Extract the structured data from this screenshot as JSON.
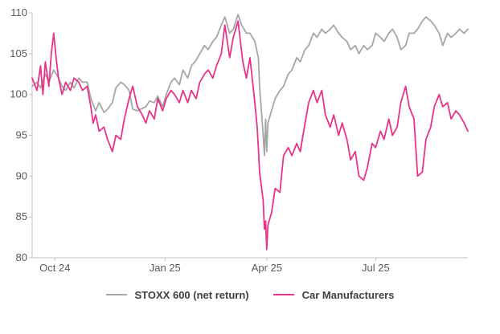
{
  "chart_data": {
    "type": "line",
    "title": "",
    "xlabel": "",
    "ylabel": "",
    "ylim": [
      80,
      110
    ],
    "yticks": [
      80,
      85,
      90,
      95,
      100,
      105,
      110
    ],
    "xlim": [
      "2024-09-26",
      "2025-09-25"
    ],
    "xtick_labels": [
      "Oct 24",
      "Jan 25",
      "Apr 25",
      "Jul 25"
    ],
    "xtick_dates": [
      "2024-10-15",
      "2025-01-15",
      "2025-04-10",
      "2025-07-10"
    ],
    "grid": false,
    "legend_position": "bottom",
    "series": [
      {
        "name": "STOXX 600 (net return)",
        "color": "#a6a6a6",
        "points": [
          [
            "2024-09-26",
            101.0
          ],
          [
            "2024-09-30",
            101.5
          ],
          [
            "2024-10-03",
            100.8
          ],
          [
            "2024-10-07",
            102.5
          ],
          [
            "2024-10-10",
            101.5
          ],
          [
            "2024-10-14",
            103.0
          ],
          [
            "2024-10-17",
            102.3
          ],
          [
            "2024-10-21",
            101.0
          ],
          [
            "2024-10-24",
            100.5
          ],
          [
            "2024-10-28",
            101.5
          ],
          [
            "2024-10-31",
            100.8
          ],
          [
            "2024-11-04",
            102.0
          ],
          [
            "2024-11-07",
            101.5
          ],
          [
            "2024-11-11",
            101.5
          ],
          [
            "2024-11-14",
            99.5
          ],
          [
            "2024-11-18",
            98.0
          ],
          [
            "2024-11-21",
            99.0
          ],
          [
            "2024-11-25",
            97.8
          ],
          [
            "2024-11-28",
            98.2
          ],
          [
            "2024-12-02",
            99.0
          ],
          [
            "2024-12-05",
            100.8
          ],
          [
            "2024-12-09",
            101.5
          ],
          [
            "2024-12-12",
            101.2
          ],
          [
            "2024-12-16",
            100.5
          ],
          [
            "2024-12-19",
            98.2
          ],
          [
            "2024-12-23",
            98.0
          ],
          [
            "2024-12-30",
            98.5
          ],
          [
            "2025-01-02",
            99.2
          ],
          [
            "2025-01-06",
            99.0
          ],
          [
            "2025-01-09",
            99.8
          ],
          [
            "2025-01-13",
            98.5
          ],
          [
            "2025-01-16",
            100.0
          ],
          [
            "2025-01-20",
            101.5
          ],
          [
            "2025-01-23",
            102.0
          ],
          [
            "2025-01-27",
            101.2
          ],
          [
            "2025-01-30",
            103.0
          ],
          [
            "2025-02-03",
            102.0
          ],
          [
            "2025-02-06",
            103.5
          ],
          [
            "2025-02-10",
            104.2
          ],
          [
            "2025-02-13",
            105.0
          ],
          [
            "2025-02-17",
            106.0
          ],
          [
            "2025-02-20",
            105.5
          ],
          [
            "2025-02-24",
            106.5
          ],
          [
            "2025-02-27",
            107.0
          ],
          [
            "2025-03-03",
            108.5
          ],
          [
            "2025-03-06",
            109.5
          ],
          [
            "2025-03-10",
            107.5
          ],
          [
            "2025-03-13",
            108.0
          ],
          [
            "2025-03-17",
            109.8
          ],
          [
            "2025-03-20",
            108.5
          ],
          [
            "2025-03-24",
            107.5
          ],
          [
            "2025-03-27",
            107.5
          ],
          [
            "2025-03-31",
            106.5
          ],
          [
            "2025-04-03",
            104.5
          ],
          [
            "2025-04-04",
            101.0
          ],
          [
            "2025-04-07",
            95.0
          ],
          [
            "2025-04-08",
            92.5
          ],
          [
            "2025-04-09",
            97.0
          ],
          [
            "2025-04-10",
            93.0
          ],
          [
            "2025-04-11",
            96.5
          ],
          [
            "2025-04-14",
            98.0
          ],
          [
            "2025-04-17",
            99.5
          ],
          [
            "2025-04-21",
            100.5
          ],
          [
            "2025-04-24",
            101.0
          ],
          [
            "2025-04-28",
            102.5
          ],
          [
            "2025-05-01",
            103.0
          ],
          [
            "2025-05-05",
            104.5
          ],
          [
            "2025-05-08",
            104.0
          ],
          [
            "2025-05-12",
            105.5
          ],
          [
            "2025-05-15",
            106.0
          ],
          [
            "2025-05-19",
            107.5
          ],
          [
            "2025-05-22",
            107.0
          ],
          [
            "2025-05-26",
            108.0
          ],
          [
            "2025-05-29",
            107.5
          ],
          [
            "2025-06-02",
            108.0
          ],
          [
            "2025-06-05",
            108.5
          ],
          [
            "2025-06-09",
            107.5
          ],
          [
            "2025-06-12",
            107.0
          ],
          [
            "2025-06-16",
            106.5
          ],
          [
            "2025-06-19",
            105.5
          ],
          [
            "2025-06-23",
            106.0
          ],
          [
            "2025-06-26",
            105.0
          ],
          [
            "2025-06-30",
            106.0
          ],
          [
            "2025-07-03",
            105.5
          ],
          [
            "2025-07-07",
            106.0
          ],
          [
            "2025-07-10",
            107.5
          ],
          [
            "2025-07-14",
            107.0
          ],
          [
            "2025-07-17",
            106.5
          ],
          [
            "2025-07-21",
            107.5
          ],
          [
            "2025-07-24",
            108.0
          ],
          [
            "2025-07-28",
            107.0
          ],
          [
            "2025-07-31",
            105.5
          ],
          [
            "2025-08-04",
            106.0
          ],
          [
            "2025-08-07",
            107.5
          ],
          [
            "2025-08-11",
            107.5
          ],
          [
            "2025-08-14",
            108.0
          ],
          [
            "2025-08-18",
            109.0
          ],
          [
            "2025-08-21",
            109.5
          ],
          [
            "2025-08-25",
            109.0
          ],
          [
            "2025-08-28",
            108.5
          ],
          [
            "2025-09-01",
            107.5
          ],
          [
            "2025-09-04",
            106.0
          ],
          [
            "2025-09-08",
            107.5
          ],
          [
            "2025-09-11",
            107.0
          ],
          [
            "2025-09-15",
            107.5
          ],
          [
            "2025-09-18",
            108.0
          ],
          [
            "2025-09-22",
            107.5
          ],
          [
            "2025-09-25",
            108.0
          ]
        ]
      },
      {
        "name": "Car Manufacturers",
        "color": "#e8338a",
        "points": [
          [
            "2024-09-26",
            102.0
          ],
          [
            "2024-09-30",
            100.5
          ],
          [
            "2024-10-03",
            103.5
          ],
          [
            "2024-10-05",
            100.0
          ],
          [
            "2024-10-07",
            104.0
          ],
          [
            "2024-10-10",
            101.0
          ],
          [
            "2024-10-12",
            105.0
          ],
          [
            "2024-10-14",
            107.5
          ],
          [
            "2024-10-16",
            104.5
          ],
          [
            "2024-10-18",
            102.0
          ],
          [
            "2024-10-21",
            100.0
          ],
          [
            "2024-10-24",
            101.5
          ],
          [
            "2024-10-28",
            100.5
          ],
          [
            "2024-10-31",
            102.0
          ],
          [
            "2024-11-04",
            101.5
          ],
          [
            "2024-11-07",
            100.5
          ],
          [
            "2024-11-11",
            101.0
          ],
          [
            "2024-11-14",
            98.5
          ],
          [
            "2024-11-16",
            96.5
          ],
          [
            "2024-11-18",
            97.5
          ],
          [
            "2024-11-21",
            95.5
          ],
          [
            "2024-11-25",
            96.0
          ],
          [
            "2024-11-28",
            94.5
          ],
          [
            "2024-12-02",
            93.0
          ],
          [
            "2024-12-05",
            95.0
          ],
          [
            "2024-12-09",
            94.5
          ],
          [
            "2024-12-12",
            97.0
          ],
          [
            "2024-12-16",
            99.5
          ],
          [
            "2024-12-19",
            101.0
          ],
          [
            "2024-12-23",
            98.5
          ],
          [
            "2024-12-27",
            97.5
          ],
          [
            "2024-12-30",
            96.5
          ],
          [
            "2025-01-02",
            98.0
          ],
          [
            "2025-01-06",
            97.0
          ],
          [
            "2025-01-09",
            99.5
          ],
          [
            "2025-01-13",
            98.0
          ],
          [
            "2025-01-16",
            99.5
          ],
          [
            "2025-01-20",
            100.5
          ],
          [
            "2025-01-23",
            100.0
          ],
          [
            "2025-01-27",
            99.0
          ],
          [
            "2025-01-30",
            100.5
          ],
          [
            "2025-02-03",
            99.0
          ],
          [
            "2025-02-06",
            100.5
          ],
          [
            "2025-02-10",
            99.5
          ],
          [
            "2025-02-13",
            101.5
          ],
          [
            "2025-02-17",
            102.5
          ],
          [
            "2025-02-20",
            103.0
          ],
          [
            "2025-02-24",
            102.0
          ],
          [
            "2025-02-27",
            103.5
          ],
          [
            "2025-03-03",
            105.0
          ],
          [
            "2025-03-06",
            108.5
          ],
          [
            "2025-03-10",
            104.5
          ],
          [
            "2025-03-13",
            107.0
          ],
          [
            "2025-03-17",
            109.0
          ],
          [
            "2025-03-19",
            106.5
          ],
          [
            "2025-03-21",
            104.0
          ],
          [
            "2025-03-24",
            102.0
          ],
          [
            "2025-03-27",
            104.5
          ],
          [
            "2025-03-31",
            99.0
          ],
          [
            "2025-04-02",
            96.0
          ],
          [
            "2025-04-03",
            93.5
          ],
          [
            "2025-04-04",
            90.5
          ],
          [
            "2025-04-07",
            87.0
          ],
          [
            "2025-04-08",
            83.5
          ],
          [
            "2025-04-09",
            84.5
          ],
          [
            "2025-04-10",
            81.0
          ],
          [
            "2025-04-11",
            84.0
          ],
          [
            "2025-04-14",
            85.5
          ],
          [
            "2025-04-17",
            88.5
          ],
          [
            "2025-04-21",
            88.0
          ],
          [
            "2025-04-24",
            92.5
          ],
          [
            "2025-04-28",
            93.5
          ],
          [
            "2025-05-01",
            92.5
          ],
          [
            "2025-05-05",
            94.0
          ],
          [
            "2025-05-08",
            93.0
          ],
          [
            "2025-05-12",
            96.5
          ],
          [
            "2025-05-15",
            99.0
          ],
          [
            "2025-05-19",
            100.5
          ],
          [
            "2025-05-22",
            99.0
          ],
          [
            "2025-05-26",
            100.5
          ],
          [
            "2025-05-29",
            97.5
          ],
          [
            "2025-06-02",
            96.0
          ],
          [
            "2025-06-05",
            97.5
          ],
          [
            "2025-06-09",
            95.0
          ],
          [
            "2025-06-12",
            96.5
          ],
          [
            "2025-06-16",
            94.5
          ],
          [
            "2025-06-19",
            92.0
          ],
          [
            "2025-06-23",
            93.0
          ],
          [
            "2025-06-26",
            90.0
          ],
          [
            "2025-06-30",
            89.5
          ],
          [
            "2025-07-03",
            91.0
          ],
          [
            "2025-07-07",
            94.0
          ],
          [
            "2025-07-10",
            93.5
          ],
          [
            "2025-07-14",
            95.5
          ],
          [
            "2025-07-17",
            94.5
          ],
          [
            "2025-07-21",
            97.0
          ],
          [
            "2025-07-24",
            95.0
          ],
          [
            "2025-07-28",
            96.0
          ],
          [
            "2025-07-31",
            99.0
          ],
          [
            "2025-08-04",
            101.0
          ],
          [
            "2025-08-07",
            98.5
          ],
          [
            "2025-08-11",
            97.0
          ],
          [
            "2025-08-14",
            90.0
          ],
          [
            "2025-08-18",
            90.5
          ],
          [
            "2025-08-21",
            94.5
          ],
          [
            "2025-08-25",
            96.0
          ],
          [
            "2025-08-28",
            98.5
          ],
          [
            "2025-09-01",
            100.0
          ],
          [
            "2025-09-04",
            98.5
          ],
          [
            "2025-09-08",
            99.0
          ],
          [
            "2025-09-11",
            97.0
          ],
          [
            "2025-09-15",
            98.0
          ],
          [
            "2025-09-18",
            97.5
          ],
          [
            "2025-09-22",
            96.5
          ],
          [
            "2025-09-25",
            95.5
          ]
        ]
      }
    ]
  }
}
